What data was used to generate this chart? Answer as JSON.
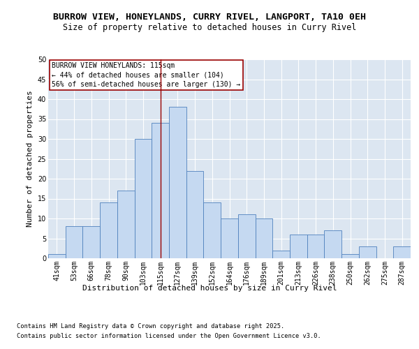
{
  "title_line1": "BURROW VIEW, HONEYLANDS, CURRY RIVEL, LANGPORT, TA10 0EH",
  "title_line2": "Size of property relative to detached houses in Curry Rivel",
  "xlabel": "Distribution of detached houses by size in Curry Rivel",
  "ylabel": "Number of detached properties",
  "categories": [
    "41sqm",
    "53sqm",
    "66sqm",
    "78sqm",
    "90sqm",
    "103sqm",
    "115sqm",
    "127sqm",
    "139sqm",
    "152sqm",
    "164sqm",
    "176sqm",
    "189sqm",
    "201sqm",
    "213sqm",
    "226sqm",
    "238sqm",
    "250sqm",
    "262sqm",
    "275sqm",
    "287sqm"
  ],
  "heights": [
    1,
    8,
    8,
    14,
    17,
    30,
    34,
    38,
    22,
    14,
    10,
    11,
    10,
    2,
    6,
    6,
    7,
    1,
    3,
    0,
    3
  ],
  "bar_color": "#c5d9f1",
  "bar_edge_color": "#4f81bd",
  "background_color": "#dce6f1",
  "grid_color": "#ffffff",
  "vline_index": 6,
  "vline_color": "#990000",
  "ylim_max": 50,
  "yticks": [
    0,
    5,
    10,
    15,
    20,
    25,
    30,
    35,
    40,
    45,
    50
  ],
  "annotation_text": [
    "BURROW VIEW HONEYLANDS: 115sqm",
    "← 44% of detached houses are smaller (104)",
    "56% of semi-detached houses are larger (130) →"
  ],
  "title_fontsize": 9.5,
  "subtitle_fontsize": 8.5,
  "axis_label_fontsize": 8,
  "tick_fontsize": 7,
  "footer_line1": "Contains HM Land Registry data © Crown copyright and database right 2025.",
  "footer_line2": "Contains public sector information licensed under the Open Government Licence v3.0."
}
